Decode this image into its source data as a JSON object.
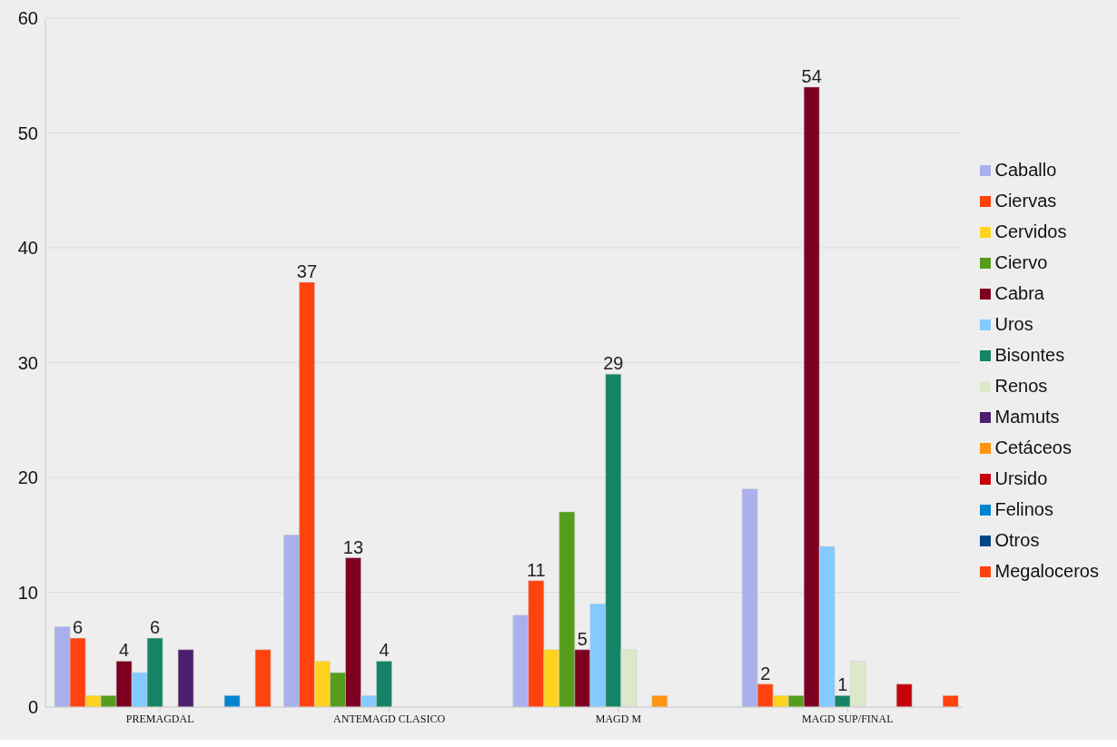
{
  "chart_data": {
    "type": "bar",
    "categories": [
      "PREMAGDAL",
      "ANTEMAGD CLASICO",
      "MAGD M",
      "MAGD SUP/FINAL"
    ],
    "series": [
      {
        "name": "Caballo",
        "color": "#a9b0ec",
        "values": [
          7,
          15,
          8,
          19
        ]
      },
      {
        "name": "Ciervas",
        "color": "#ff420e",
        "values": [
          6,
          37,
          11,
          2
        ],
        "value_labels": [
          "6",
          "37",
          "11",
          "2"
        ]
      },
      {
        "name": "Cervidos",
        "color": "#ffd320",
        "values": [
          1,
          4,
          5,
          1
        ]
      },
      {
        "name": "Ciervo",
        "color": "#579d1c",
        "values": [
          1,
          3,
          17,
          1
        ]
      },
      {
        "name": "Cabra",
        "color": "#7e0021",
        "values": [
          4,
          13,
          5,
          54
        ],
        "value_labels": [
          "4",
          "13",
          "5",
          "54"
        ]
      },
      {
        "name": "Uros",
        "color": "#83caff",
        "values": [
          3,
          1,
          9,
          14
        ]
      },
      {
        "name": "Bisontes",
        "color": "#158466",
        "values": [
          6,
          4,
          29,
          1
        ],
        "value_labels": [
          "6",
          "4",
          "29",
          "1"
        ]
      },
      {
        "name": "Renos",
        "color": "#dde8cb",
        "values": [
          null,
          null,
          5,
          4
        ]
      },
      {
        "name": "Mamuts",
        "color": "#4b1f6f",
        "values": [
          5,
          null,
          null,
          null
        ]
      },
      {
        "name": "Cetáceos",
        "color": "#ff950e",
        "values": [
          null,
          null,
          1,
          null
        ]
      },
      {
        "name": "Ursido",
        "color": "#c5000b",
        "values": [
          null,
          null,
          null,
          2
        ]
      },
      {
        "name": "Felinos",
        "color": "#0084d1",
        "values": [
          1,
          null,
          null,
          null
        ]
      },
      {
        "name": "Otros",
        "color": "#004586",
        "values": [
          null,
          null,
          null,
          null
        ]
      },
      {
        "name": "Megaloceros",
        "color": "#ff420e",
        "values": [
          5,
          null,
          null,
          1
        ]
      }
    ],
    "ylim": [
      0,
      60
    ],
    "yticks": [
      0,
      10,
      20,
      30,
      40,
      50,
      60
    ],
    "grid": "y",
    "legend": "right"
  }
}
